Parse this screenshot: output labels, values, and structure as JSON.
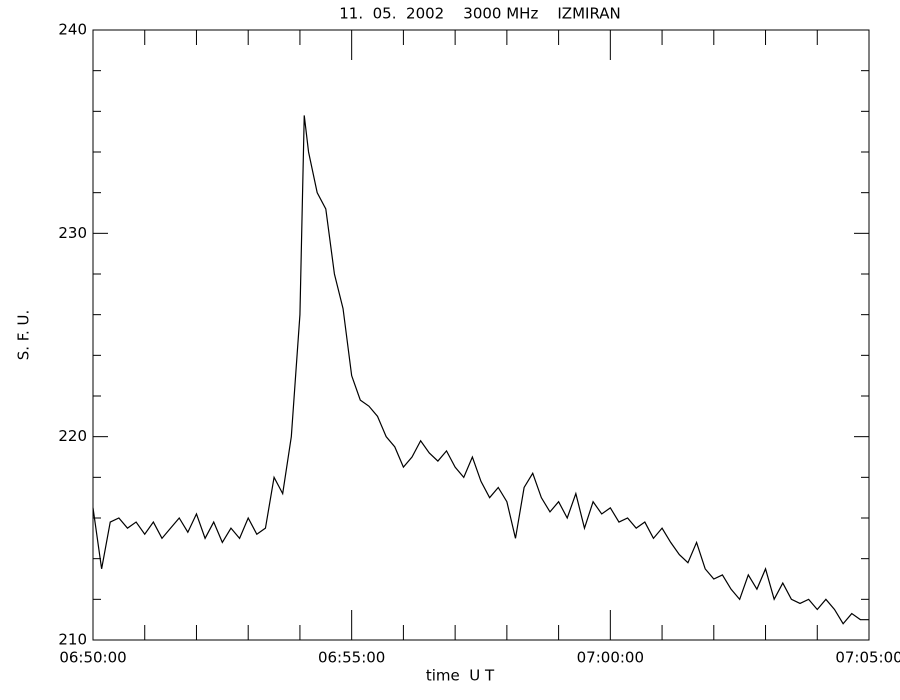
{
  "chart_data": {
    "type": "line",
    "title": "11.  05.  2002    3000 MHz    IZMIRAN",
    "xlabel": "time  U T",
    "ylabel": "S. F. U.",
    "x": [
      "06:50:00",
      "06:50:10",
      "06:50:20",
      "06:50:30",
      "06:50:40",
      "06:50:50",
      "06:51:00",
      "06:51:10",
      "06:51:20",
      "06:51:30",
      "06:51:40",
      "06:51:50",
      "06:52:00",
      "06:52:10",
      "06:52:20",
      "06:52:30",
      "06:52:40",
      "06:52:50",
      "06:53:00",
      "06:53:10",
      "06:53:20",
      "06:53:30",
      "06:53:40",
      "06:53:50",
      "06:54:00",
      "06:54:05",
      "06:54:10",
      "06:54:20",
      "06:54:30",
      "06:54:40",
      "06:54:50",
      "06:55:00",
      "06:55:10",
      "06:55:20",
      "06:55:30",
      "06:55:40",
      "06:55:50",
      "06:56:00",
      "06:56:10",
      "06:56:20",
      "06:56:30",
      "06:56:40",
      "06:56:50",
      "06:57:00",
      "06:57:10",
      "06:57:20",
      "06:57:30",
      "06:57:40",
      "06:57:50",
      "06:58:00",
      "06:58:10",
      "06:58:20",
      "06:58:30",
      "06:58:40",
      "06:58:50",
      "06:59:00",
      "06:59:10",
      "06:59:20",
      "06:59:30",
      "06:59:40",
      "06:59:50",
      "07:00:00",
      "07:00:10",
      "07:00:20",
      "07:00:30",
      "07:00:40",
      "07:00:50",
      "07:01:00",
      "07:01:10",
      "07:01:20",
      "07:01:30",
      "07:01:40",
      "07:01:50",
      "07:02:00",
      "07:02:10",
      "07:02:20",
      "07:02:30",
      "07:02:40",
      "07:02:50",
      "07:03:00",
      "07:03:10",
      "07:03:20",
      "07:03:30",
      "07:03:40",
      "07:03:50",
      "07:04:00",
      "07:04:10",
      "07:04:20",
      "07:04:30",
      "07:04:40",
      "07:04:50",
      "07:05:00"
    ],
    "series": [
      {
        "color": "#000000",
        "values": [
          216.5,
          213.5,
          215.8,
          216.0,
          215.5,
          215.8,
          215.2,
          215.8,
          215.0,
          215.5,
          216.0,
          215.3,
          216.2,
          215.0,
          215.8,
          214.8,
          215.5,
          215.0,
          216.0,
          215.2,
          215.5,
          218.0,
          217.2,
          220.0,
          226.0,
          235.8,
          234.0,
          232.0,
          231.2,
          228.0,
          226.3,
          223.0,
          221.8,
          221.5,
          221.0,
          220.0,
          219.5,
          218.5,
          219.0,
          219.8,
          219.2,
          218.8,
          219.3,
          218.5,
          218.0,
          219.0,
          217.8,
          217.0,
          217.5,
          216.8,
          215.0,
          217.5,
          218.2,
          217.0,
          216.3,
          216.8,
          216.0,
          217.2,
          215.5,
          216.8,
          216.2,
          216.5,
          215.8,
          216.0,
          215.5,
          215.8,
          215.0,
          215.5,
          214.8,
          214.2,
          213.8,
          214.8,
          213.5,
          213.0,
          213.2,
          212.5,
          212.0,
          213.2,
          212.5,
          213.5,
          212.0,
          212.8,
          212.0,
          211.8,
          212.0,
          211.5,
          212.0,
          211.5,
          210.8,
          211.3,
          211.0,
          211.0
        ]
      }
    ],
    "xlim": [
      "06:50:00",
      "07:05:00"
    ],
    "xticks": [
      "06:50:00",
      "06:55:00",
      "07:00:00",
      "07:05:00"
    ],
    "ylim": [
      210,
      240
    ],
    "yticks": [
      210,
      220,
      230,
      240
    ],
    "xminor_ticks": 5,
    "yminor_ticks": 5
  }
}
